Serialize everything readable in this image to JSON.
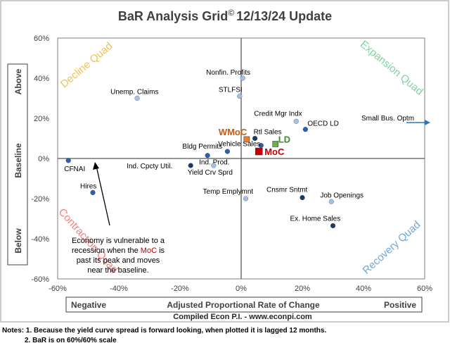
{
  "chart_data": {
    "type": "scatter",
    "title": "BaR Analysis Grid",
    "title_mark": "©",
    "title_suffix": "12/13/24 Update",
    "xlim": [
      -0.6,
      0.6
    ],
    "ylim": [
      -0.6,
      0.6
    ],
    "x_ticks": [
      {
        "v": -0.6,
        "label": "-60%"
      },
      {
        "v": -0.4,
        "label": "-40%"
      },
      {
        "v": -0.2,
        "label": "-20%"
      },
      {
        "v": 0,
        "label": "0%"
      },
      {
        "v": 0.2,
        "label": "20%"
      },
      {
        "v": 0.4,
        "label": "40%"
      },
      {
        "v": 0.6,
        "label": "60%"
      }
    ],
    "y_ticks": [
      {
        "v": 0.6,
        "label": "60%"
      },
      {
        "v": 0.4,
        "label": "40%"
      },
      {
        "v": 0.2,
        "label": "20%"
      },
      {
        "v": 0,
        "label": "0%"
      },
      {
        "v": -0.2,
        "label": "-20%"
      },
      {
        "v": -0.4,
        "label": "-40%"
      },
      {
        "v": -0.6,
        "label": "-60%"
      }
    ],
    "grid": false,
    "x_axis_box": {
      "left": "Negative",
      "center": "Adjusted Proportional Rate of Change",
      "right": "Positive"
    },
    "y_axis_box": {
      "top": "Above",
      "center": "Baseline",
      "bottom": "Below"
    },
    "quadrants": [
      {
        "label": "Decline Quad",
        "color": "#f2c14e"
      },
      {
        "label": "Expansion Quad",
        "color": "#7fd4a0"
      },
      {
        "label": "Contraction Quad",
        "color": "#f08080"
      },
      {
        "label": "Recovery Quad",
        "color": "#6fa8dc"
      }
    ],
    "points": [
      {
        "label": "Nonfin. Profits",
        "x": 0.005,
        "y": 0.4,
        "color": "#a9bfe0",
        "label_color": "#000000"
      },
      {
        "label": "STLFSI",
        "x": -0.005,
        "y": 0.31,
        "color": "#a9bfe0",
        "label_color": "#000000"
      },
      {
        "label": "Unemp. Claims",
        "x": -0.34,
        "y": 0.3,
        "color": "#a9bfe0",
        "label_color": "#000000"
      },
      {
        "label": "Credit Mgr Indx",
        "x": 0.18,
        "y": 0.185,
        "color": "#a9bfe0",
        "label_color": "#000000"
      },
      {
        "label": "OECD LD",
        "x": 0.21,
        "y": 0.145,
        "color": "#2e5fa8",
        "label_color": "#000000"
      },
      {
        "label": "Rtl Sales",
        "x": 0.045,
        "y": 0.1,
        "color": "#1f3864",
        "label_color": "#000000"
      },
      {
        "label": "Vehicle Sales",
        "x": 0.065,
        "y": 0.065,
        "color": "#2e5fa8",
        "label_color": "#000000"
      },
      {
        "label": "Bldg Permits",
        "x": -0.045,
        "y": 0.035,
        "color": "#2e5fa8",
        "label_color": "#000000"
      },
      {
        "label": "Ind. Prod.",
        "x": -0.11,
        "y": 0.015,
        "color": "#2e5fa8",
        "label_color": "#000000"
      },
      {
        "label": "Ind. Cpcty Util.",
        "x": -0.165,
        "y": -0.035,
        "color": "#1f3864",
        "label_color": "#000000"
      },
      {
        "label": "Yield Crv Sprd",
        "x": -0.09,
        "y": -0.035,
        "color": "#a9bfe0",
        "label_color": "#000000"
      },
      {
        "label": "CFNAI",
        "x": -0.565,
        "y": -0.01,
        "color": "#2e5fa8",
        "label_color": "#000000"
      },
      {
        "label": "Hires",
        "x": -0.485,
        "y": -0.17,
        "color": "#2e5fa8",
        "label_color": "#000000"
      },
      {
        "label": "Temp Emplymnt",
        "x": 0.015,
        "y": -0.2,
        "color": "#a9bfe0",
        "label_color": "#000000"
      },
      {
        "label": "Cnsmr Sntmt",
        "x": 0.2,
        "y": -0.195,
        "color": "#1f3864",
        "label_color": "#000000"
      },
      {
        "label": "Job Openings",
        "x": 0.295,
        "y": -0.215,
        "color": "#a9bfe0",
        "label_color": "#000000"
      },
      {
        "label": "Ex. Home Sales",
        "x": 0.3,
        "y": -0.335,
        "color": "#1f3864",
        "label_color": "#000000"
      },
      {
        "label": "WMoC",
        "x": 0.018,
        "y": 0.095,
        "color": "#ed7d31",
        "label_color": "#c55a11",
        "marker": "square",
        "emphasis": true
      },
      {
        "label": "LD",
        "x": 0.112,
        "y": 0.072,
        "color": "#70ad47",
        "label_color": "#3a8d2a",
        "marker": "square",
        "emphasis": true
      },
      {
        "label": "MoC",
        "x": 0.058,
        "y": 0.035,
        "color": "#c00000",
        "label_color": "#c00000",
        "marker": "square",
        "emphasis": true
      }
    ],
    "off_chart": {
      "label": "Small Bus. Optm",
      "direction": "right",
      "y": 0.18
    },
    "annotation": {
      "lines": [
        [
          {
            "t": "Economy is vulnerable to a",
            "c": "#000000"
          }
        ],
        [
          {
            "t": "recession when the ",
            "c": "#000000"
          },
          {
            "t": "MoC",
            "c": "#c00000"
          },
          {
            "t": " is",
            "c": "#000000"
          }
        ],
        [
          {
            "t": "past its peak and moves",
            "c": "#000000"
          }
        ],
        [
          {
            "t": "near the baseline.",
            "c": "#000000"
          }
        ]
      ]
    },
    "arrow_color": "#2e75b6"
  },
  "footer": {
    "compiled": "Compiled Econ P.I. - www.econpi.com",
    "note1": "Notes: 1. Because the yield curve spread is forward looking, when plotted it is lagged 12 months.",
    "note2": "2. BaR is on 60%/60% scale"
  }
}
